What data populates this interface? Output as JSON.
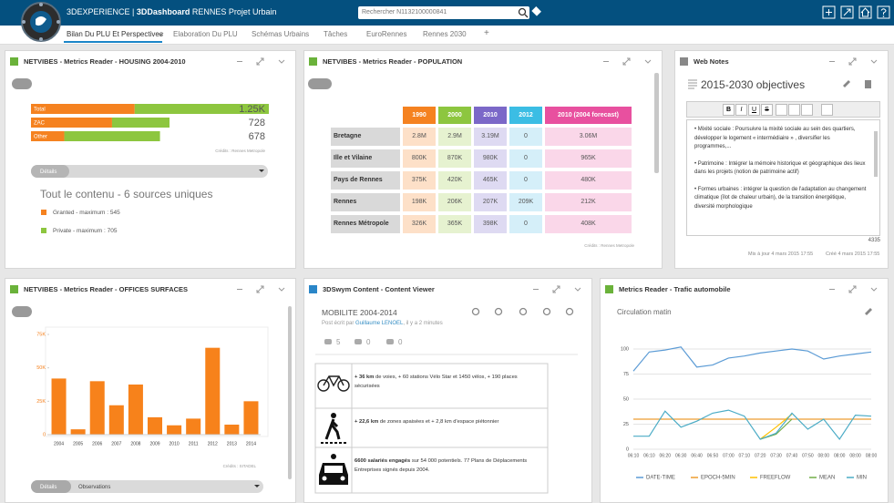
{
  "header": {
    "brand": "3DEXPERIENCE |",
    "app": "3DDashboard",
    "dashboard": "RENNES Projet Urbain",
    "search": "Rechercher N1132100000841"
  },
  "tabs": [
    "Bilan Du PLU Et Perspectives",
    "Elaboration Du PLU",
    "Schémas Urbains",
    "Tâches",
    "EuroRennes",
    "Rennes 2030",
    "+"
  ],
  "widgets": [
    {
      "title": "NETVIBES - Metrics Reader - HOUSING 2004-2010",
      "credits": "Crédits : Rennes Metropole",
      "dropdown": "Détails",
      "summary": "Tout le contenu - 6 sources uniques"
    },
    {
      "title": "NETVIBES - Metrics Reader - POPULATION",
      "credits": "Crédits : Rennes Metropole"
    },
    {
      "title": "Web Notes",
      "note_title": "2015-2030 objectives",
      "toolbar": [
        "B",
        "I",
        "U",
        "S"
      ],
      "paragraphs": [
        "• Mixité sociale : Poursuivre la mixité sociale au sein des quartiers, développer le logement « intermédiaire » , diversifier les programmes,...",
        "• Patrimoine : Intégrer la mémoire historique et géographique des lieux dans les projets (notion de patrimoine actif)",
        "• Formes urbaines : intégrer la question de l'adaptation au changement climatique (îlot de chaleur urbain), de la transition énergétique, diversité morphologique"
      ],
      "count": "4335",
      "updated": "Mis à jour 4 mars 2015 17:55",
      "created": "Créé 4 mars 2015 17:55"
    },
    {
      "title": "NETVIBES - Metrics Reader - OFFICES SURFACES",
      "credits": "Crédits : SITADEL",
      "tabs": [
        "Détails",
        "Observations"
      ]
    },
    {
      "title": "3DSwym Content - Content Viewer",
      "post_title": "MOBILITE 2004-2014",
      "post_prefix": "Post écrit par",
      "author": "Guillaume LENOEL",
      "post_suffix": ", il y a 2 minutes",
      "views": 5,
      "likes": 0,
      "comments": 0,
      "rows": [
        {
          "bold": "+ 36 km",
          "text": " de voies, + 60 stations Vélo Star et 1450 vélos, + 190 places sécurisées"
        },
        {
          "bold": "+ 22,6 km",
          "text": " de zones apaisées et + 2,8 km d'espace piétonnier"
        },
        {
          "bold": "6600 salariés engagés",
          "text": " sur 54 000 potentiels. 77 Plans de Déplacements Entreprises signés depuis 2004."
        }
      ]
    },
    {
      "title": "Metrics Reader - Trafic automobile",
      "subtitle": "Circulation matin"
    }
  ],
  "table": {
    "columns": [
      "1990",
      "2000",
      "2010",
      "2012",
      "2010 (2004 forecast)"
    ],
    "column_colors": [
      "#f58220",
      "#8dc63f",
      "#7b68c8",
      "#3bbde4",
      "#e8509f"
    ],
    "cell_colors": [
      "#fde0c8",
      "#e6f2d0",
      "#dedaf2",
      "#d5eff9",
      "#fad7e9"
    ],
    "rows": [
      [
        "Bretagne",
        "2.8M",
        "2.9M",
        "3.19M",
        "0",
        "3.06M"
      ],
      [
        "Ille et Vilaine",
        "800K",
        "870K",
        "980K",
        "0",
        "965K"
      ],
      [
        "Pays de Rennes",
        "375K",
        "420K",
        "465K",
        "0",
        "480K"
      ],
      [
        "Rennes",
        "198K",
        "206K",
        "207K",
        "209K",
        "212K"
      ],
      [
        "Rennes Métropole",
        "326K",
        "365K",
        "398K",
        "0",
        "408K"
      ]
    ]
  },
  "chart_data": [
    {
      "type": "hbar_stacked",
      "categories": [
        "Total",
        "ZAC",
        "Other"
      ],
      "total_labels": [
        "1.25K",
        "728",
        "678"
      ],
      "series": [
        {
          "name": "Granted - maximum : 545",
          "color": "#f58220",
          "values": [
            545,
            426,
            175
          ]
        },
        {
          "name": "Private - maximum : 705",
          "color": "#8dc63f",
          "values": [
            705,
            302,
            503
          ]
        }
      ]
    },
    {
      "type": "bar",
      "categories": [
        "2004",
        "2005",
        "2006",
        "2007",
        "2008",
        "2009",
        "2010",
        "2011",
        "2012",
        "2013",
        "2014"
      ],
      "values": [
        42000,
        4000,
        40000,
        22000,
        37500,
        13000,
        7000,
        12000,
        65000,
        7500,
        25000
      ],
      "color": "#f7821b",
      "ylim": [
        0,
        75000
      ],
      "yticks": [
        0,
        {
          "value": 25000,
          "label": "25K"
        },
        {
          "value": 50000,
          "label": "50K"
        },
        {
          "value": 75000,
          "label": "75K"
        }
      ]
    },
    {
      "type": "line",
      "categories": [
        "06:10",
        "06:10",
        "06:20",
        "06:30",
        "06:40",
        "06:50",
        "07:00",
        "07:10",
        "07:20",
        "07:30",
        "07:40",
        "07:50",
        "08:00",
        "08:00",
        "08:00",
        "08:00"
      ],
      "ylim": [
        0,
        105
      ],
      "yticks": [
        0,
        25,
        50,
        75,
        100
      ],
      "grid": true,
      "series": [
        {
          "name": "DATE-TIME",
          "color": "#5b9bd5",
          "values": [
            78,
            97,
            99,
            102,
            82,
            84,
            91,
            93,
            96,
            98,
            100,
            98,
            90,
            93,
            95,
            97
          ]
        },
        {
          "name": "EPOCH-5MIN",
          "color": "#ed9d31",
          "values": [
            30,
            30,
            30,
            30,
            30,
            30,
            30,
            30,
            30,
            30,
            30,
            30,
            30,
            30,
            30,
            30
          ]
        },
        {
          "name": "FREEFLOW",
          "color": "#ffc000",
          "values": [
            null,
            null,
            null,
            null,
            null,
            null,
            null,
            null,
            10,
            22,
            35,
            null,
            null,
            null,
            null,
            null
          ]
        },
        {
          "name": "MEAN",
          "color": "#70ad47",
          "values": [
            null,
            null,
            null,
            null,
            null,
            null,
            null,
            null,
            10,
            15,
            30,
            null,
            null,
            null,
            null,
            null
          ]
        },
        {
          "name": "MIN",
          "color": "#4bacc6",
          "values": [
            13,
            13,
            38,
            22,
            28,
            36,
            39,
            33,
            10,
            16,
            36,
            20,
            30,
            10,
            34,
            33
          ]
        }
      ]
    }
  ]
}
